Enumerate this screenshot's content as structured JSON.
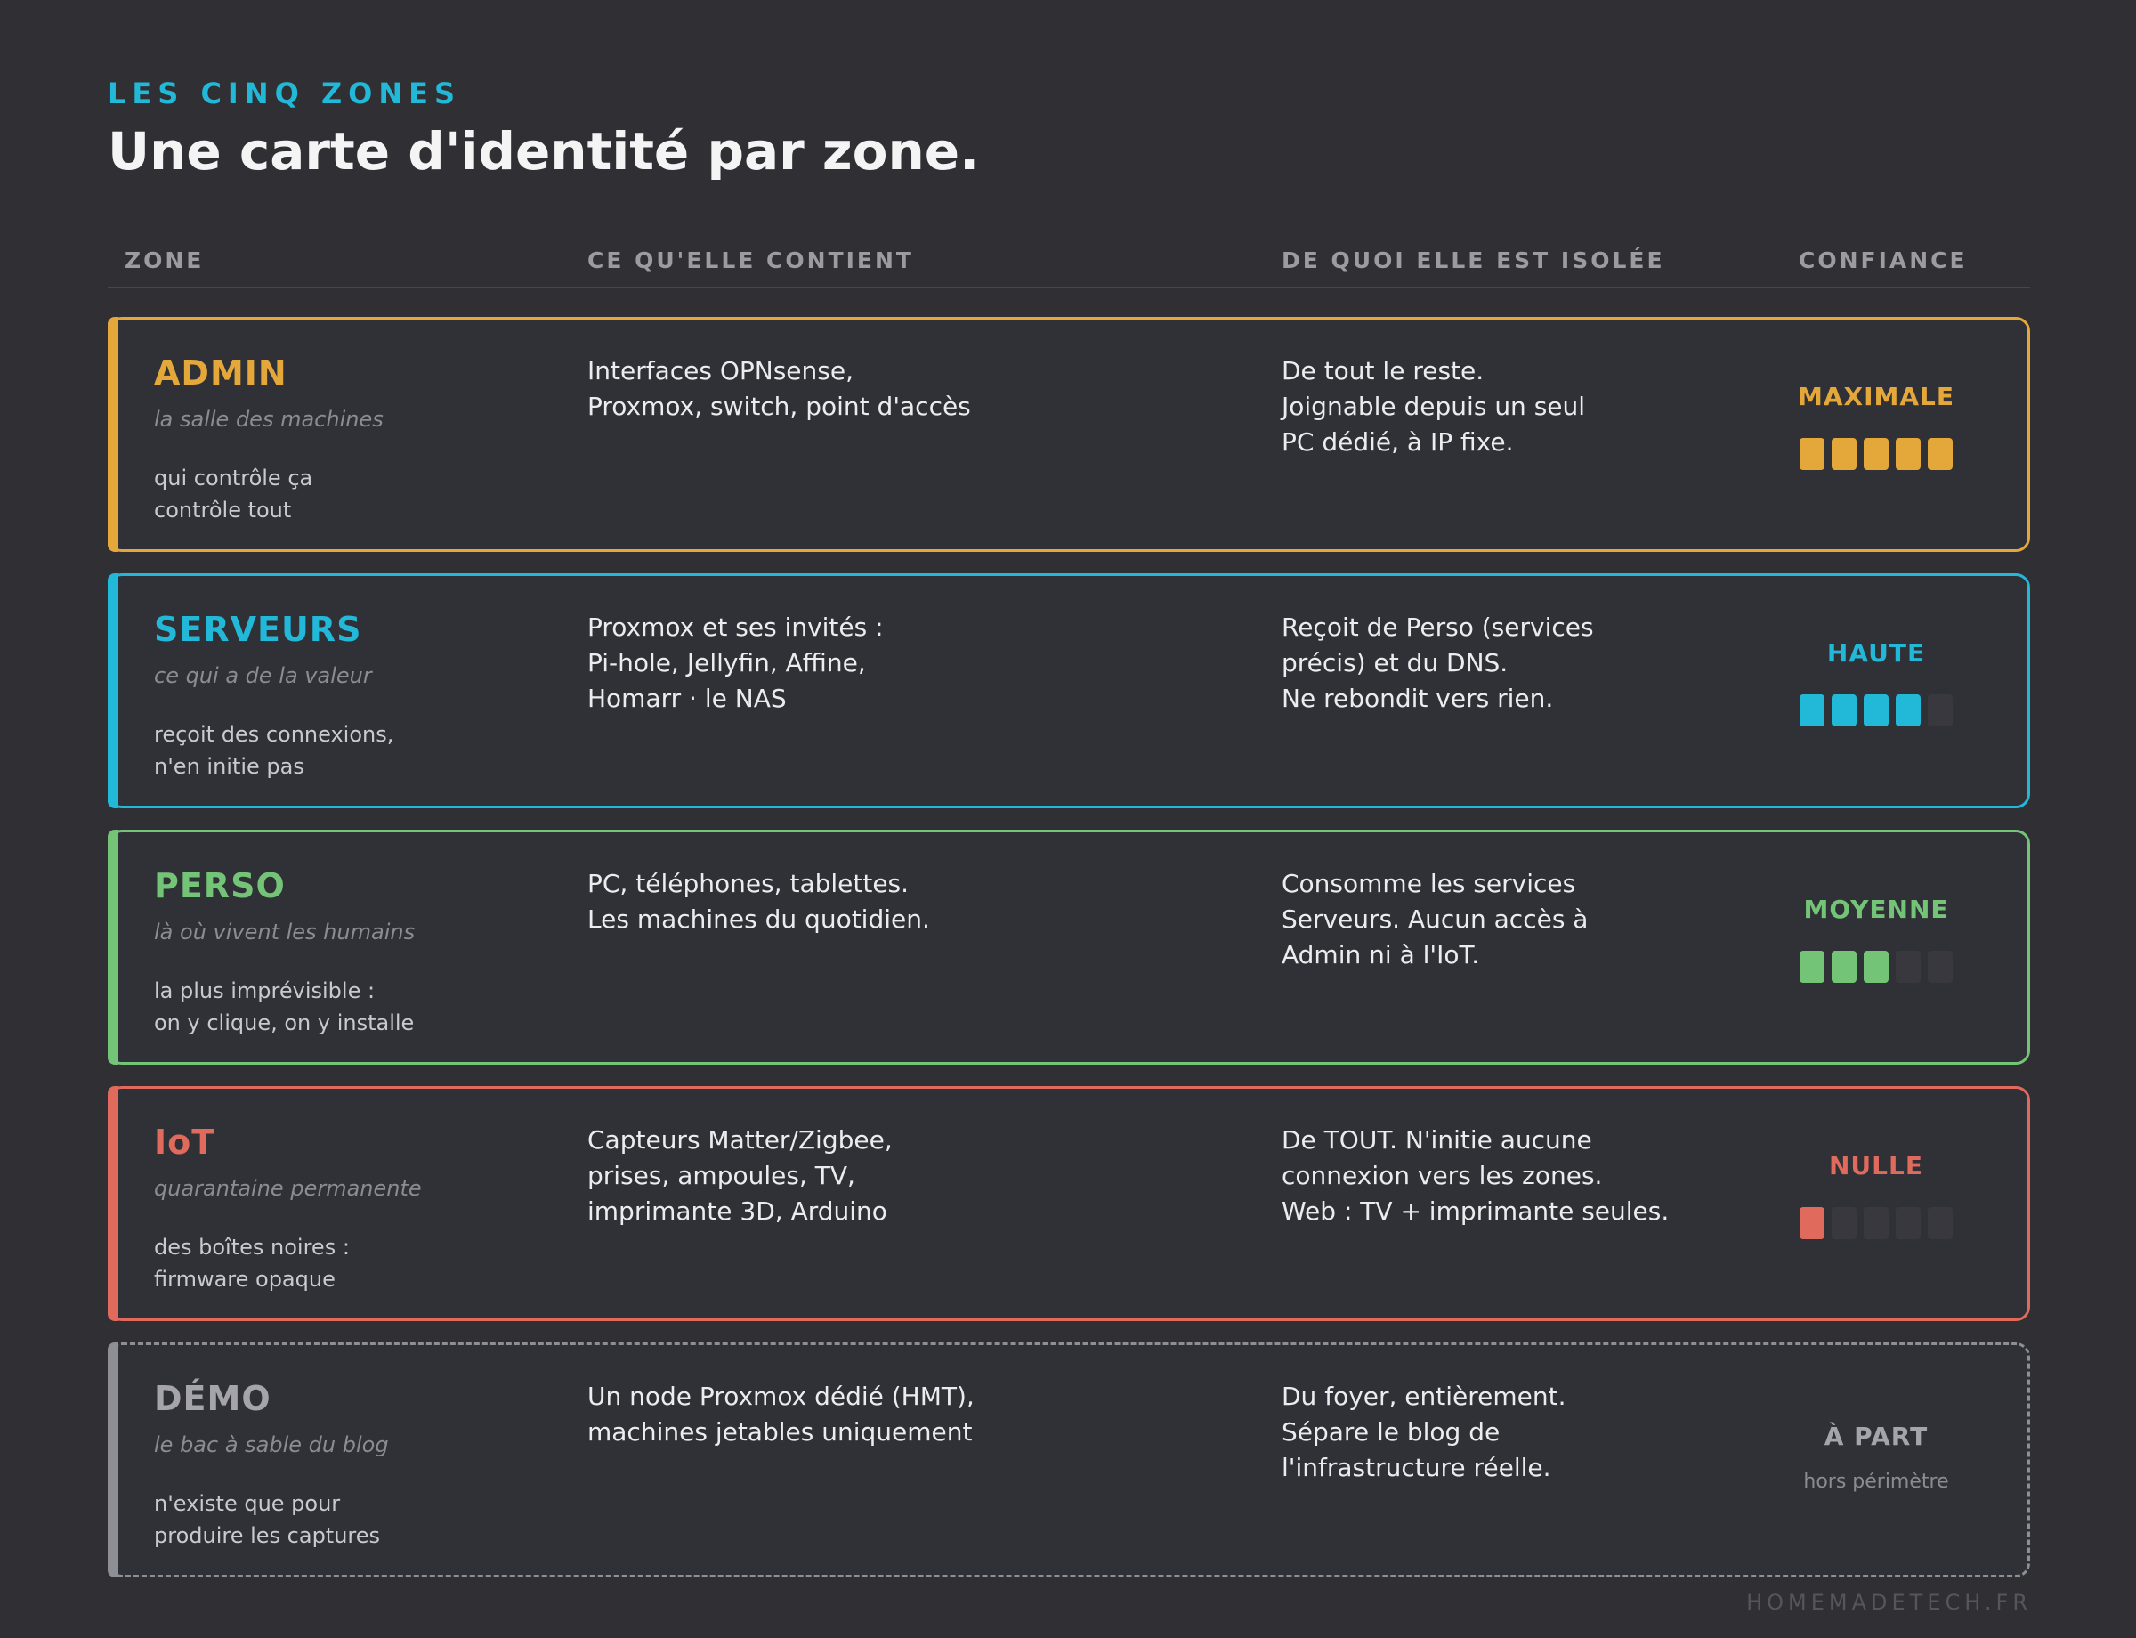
{
  "header": {
    "eyebrow": "LES CINQ ZONES",
    "title": "Une carte d'identité par zone."
  },
  "columns": {
    "zone": "ZONE",
    "content": "CE QU'ELLE CONTIENT",
    "isolation": "DE QUOI ELLE EST ISOLÉE",
    "trust": "CONFIANCE"
  },
  "zones": [
    {
      "name": "ADMIN",
      "tagline": "la salle des machines",
      "note": "qui contrôle ça\ncontrôle tout",
      "content": "Interfaces OPNsense,\nProxmox, switch, point d'accès",
      "isolation": "De tout le reste.\nJoignable depuis un seul\nPC dédié, à IP fixe.",
      "trust_label": "MAXIMALE",
      "trust_level": 5,
      "trust_max": 5,
      "color": "#e4a83a"
    },
    {
      "name": "SERVEURS",
      "tagline": "ce qui a de la valeur",
      "note": "reçoit des connexions,\nn'en initie pas",
      "content": "Proxmox et ses invités :\nPi-hole, Jellyfin, Affine,\nHomarr · le NAS",
      "isolation": "Reçoit de Perso (services\nprécis) et du DNS.\nNe rebondit vers rien.",
      "trust_label": "HAUTE",
      "trust_level": 4,
      "trust_max": 5,
      "color": "#22b8d8"
    },
    {
      "name": "PERSO",
      "tagline": "là où vivent les humains",
      "note": "la plus imprévisible :\non y clique, on y installe",
      "content": "PC, téléphones, tablettes.\nLes machines du quotidien.",
      "isolation": "Consomme les services\nServeurs. Aucun accès à\nAdmin ni à l'IoT.",
      "trust_label": "MOYENNE",
      "trust_level": 3,
      "trust_max": 5,
      "color": "#74c477"
    },
    {
      "name": "IoT",
      "tagline": "quarantaine permanente",
      "note": "des boîtes noires :\nfirmware opaque",
      "content": "Capteurs Matter/Zigbee,\nprises, ampoules, TV,\nimprimante 3D, Arduino",
      "isolation": "De TOUT. N'initie aucune\nconnexion vers les zones.\nWeb : TV + imprimante seules.",
      "trust_label": "NULLE",
      "trust_level": 1,
      "trust_max": 5,
      "color": "#e06a5c"
    },
    {
      "name": "DÉMO",
      "tagline": "le bac à sable du blog",
      "note": "n'existe que pour\nproduire les captures",
      "content": "Un node Proxmox dédié (HMT),\nmachines jetables uniquement",
      "isolation": "Du foyer, entièrement.\nSépare le blog de\nl'infrastructure réelle.",
      "trust_label": "À PART",
      "trust_sub": "hors périmètre",
      "trust_level": 0,
      "trust_max": 0,
      "color": "#a4a4aa",
      "border_color": "#8e8e95",
      "dashed": true
    }
  ],
  "footer": "HOMEMADETECH.FR"
}
